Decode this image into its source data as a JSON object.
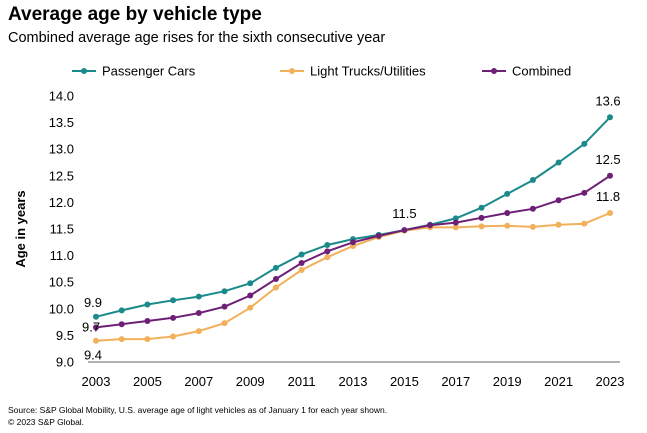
{
  "chart_data": {
    "type": "line",
    "title": "Average age by vehicle type",
    "subtitle": "Combined average age rises for the sixth consecutive year",
    "xlabel": "",
    "ylabel": "Age in years",
    "ylim": [
      9.0,
      14.0
    ],
    "yticks": [
      "9.0",
      "9.5",
      "10.0",
      "10.5",
      "11.0",
      "11.5",
      "12.0",
      "12.5",
      "13.0",
      "13.5",
      "14.0"
    ],
    "xticks": [
      "2003",
      "2005",
      "2007",
      "2009",
      "2011",
      "2013",
      "2015",
      "2017",
      "2019",
      "2021",
      "2023"
    ],
    "x": [
      2003,
      2004,
      2005,
      2006,
      2007,
      2008,
      2009,
      2010,
      2011,
      2012,
      2013,
      2014,
      2015,
      2016,
      2017,
      2018,
      2019,
      2020,
      2021,
      2022,
      2023
    ],
    "legend_position": "top",
    "grid": false,
    "series": [
      {
        "name": "Passenger Cars",
        "color": "#1a8a8a",
        "values": [
          9.85,
          9.97,
          10.08,
          10.16,
          10.23,
          10.33,
          10.48,
          10.77,
          11.02,
          11.2,
          11.31,
          11.39,
          11.48,
          11.58,
          11.7,
          11.9,
          12.16,
          12.42,
          12.75,
          13.1,
          13.6
        ]
      },
      {
        "name": "Light Trucks/Utilities",
        "color": "#f2b05a",
        "values": [
          9.4,
          9.43,
          9.43,
          9.48,
          9.58,
          9.73,
          10.02,
          10.4,
          10.73,
          10.97,
          11.18,
          11.35,
          11.47,
          11.53,
          11.53,
          11.55,
          11.56,
          11.54,
          11.58,
          11.6,
          11.8
        ]
      },
      {
        "name": "Combined",
        "color": "#6e2076",
        "values": [
          9.65,
          9.71,
          9.77,
          9.83,
          9.92,
          10.04,
          10.25,
          10.56,
          10.86,
          11.08,
          11.25,
          11.37,
          11.48,
          11.57,
          11.62,
          11.71,
          11.8,
          11.88,
          12.04,
          12.18,
          12.5
        ]
      }
    ],
    "annotations": [
      {
        "text": "9.9",
        "x": 2003,
        "y": 9.85,
        "series": "Passenger Cars"
      },
      {
        "text": "9.7",
        "x": 2003,
        "y": 9.65,
        "series": "Combined"
      },
      {
        "text": "9.4",
        "x": 2003,
        "y": 9.4,
        "series": "Light Trucks/Utilities"
      },
      {
        "text": "11.5",
        "x": 2015,
        "y": 11.48,
        "series": "Combined"
      },
      {
        "text": "13.6",
        "x": 2023,
        "y": 13.6,
        "series": "Passenger Cars"
      },
      {
        "text": "12.5",
        "x": 2023,
        "y": 12.5,
        "series": "Combined"
      },
      {
        "text": "11.8",
        "x": 2023,
        "y": 11.8,
        "series": "Light Trucks/Utilities"
      }
    ]
  },
  "source": {
    "line1": "Source: S&P Global Mobility, U.S. average age of light vehicles as of January 1 for each year shown.",
    "line2": "© 2023 S&P Global."
  }
}
